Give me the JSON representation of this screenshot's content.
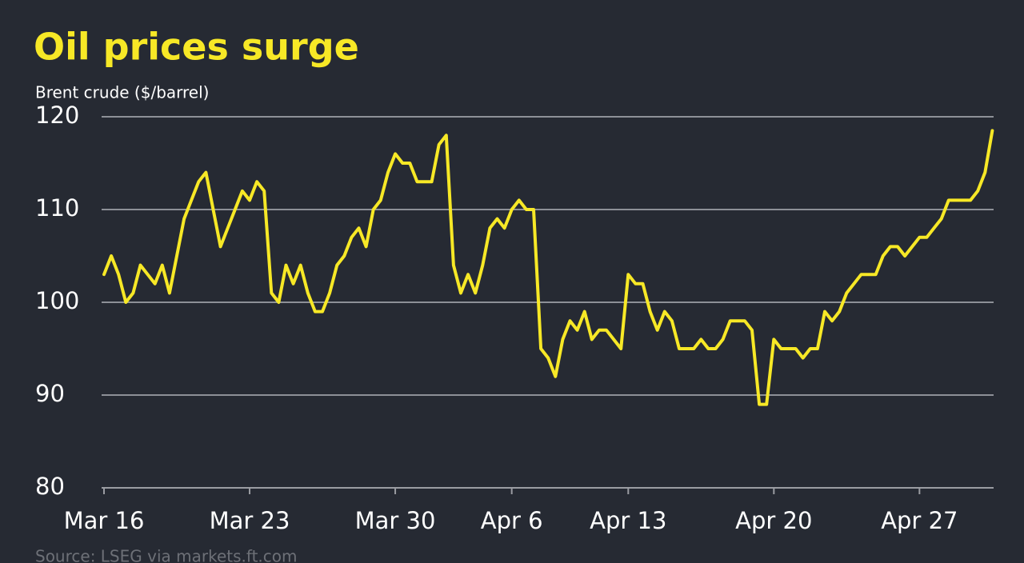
{
  "chart_data": {
    "type": "line",
    "title": "Oil prices surge",
    "subtitle": "Brent crude ($/barrel)",
    "source": "Source: LSEG via markets.ft.com",
    "x": [
      0,
      0.25,
      0.5,
      0.75,
      1,
      1.25,
      1.5,
      1.75,
      2,
      2.25,
      2.5,
      2.75,
      3,
      3.25,
      3.5,
      3.75,
      4,
      4.25,
      4.5,
      4.75,
      5,
      5.25,
      5.5,
      5.75,
      6,
      6.25,
      6.5,
      6.75,
      7,
      7.25,
      7.5,
      7.75,
      8,
      8.25,
      8.5,
      8.75,
      9,
      9.25,
      9.5,
      9.75,
      10,
      10.25,
      10.5,
      10.75,
      11,
      11.25,
      11.5,
      11.75,
      12,
      12.25,
      12.5,
      12.75,
      13,
      13.25,
      13.5,
      13.75,
      14,
      14.25,
      14.5,
      14.75,
      15,
      15.25,
      15.5,
      15.75,
      16,
      16.25,
      16.5,
      16.75,
      17,
      17.25,
      17.5,
      17.75,
      18,
      18.25,
      18.5,
      18.75,
      19,
      19.25,
      19.5,
      19.75,
      20,
      20.25,
      20.5,
      20.75,
      21,
      21.25,
      21.5,
      21.75,
      22,
      22.25,
      22.5,
      22.75,
      23,
      23.25,
      23.5,
      23.75,
      24,
      24.25,
      24.5,
      24.75,
      25,
      25.25,
      25.5,
      25.75,
      26,
      26.25,
      26.5,
      26.75,
      27,
      27.25,
      27.5,
      27.75,
      28,
      28.25,
      28.5,
      28.75,
      29,
      29.25,
      29.5,
      29.75,
      30,
      30.25,
      30.5
    ],
    "series": [
      {
        "name": "Brent crude",
        "color": "#f7e826",
        "values": [
          103,
          105,
          103,
          100,
          101,
          104,
          103,
          102,
          104,
          101,
          105,
          109,
          111,
          113,
          114,
          110,
          106,
          108,
          110,
          112,
          111,
          113,
          112,
          101,
          100,
          104,
          102,
          104,
          101,
          99,
          99,
          101,
          104,
          105,
          107,
          108,
          106,
          110,
          111,
          114,
          116,
          115,
          115,
          113,
          113,
          113,
          117,
          118,
          104,
          101,
          103,
          101,
          104,
          108,
          109,
          108,
          110,
          111,
          110,
          110,
          95,
          94,
          92,
          96,
          98,
          97,
          99,
          96,
          97,
          97,
          96,
          95,
          103,
          102,
          102,
          99,
          97,
          99,
          98,
          95,
          95,
          95,
          96,
          95,
          95,
          96,
          98,
          98,
          98,
          97,
          89,
          89,
          96,
          95,
          95,
          95,
          94,
          95,
          95,
          99,
          98,
          99,
          101,
          102,
          103,
          103,
          103,
          105,
          106,
          106,
          105,
          106,
          107,
          107,
          108,
          109,
          111,
          111,
          111,
          111,
          112,
          114,
          118.5
        ]
      }
    ],
    "xlim": [
      0,
      30.6
    ],
    "xticks": [
      {
        "value": 0,
        "label": "Mar 16"
      },
      {
        "value": 5,
        "label": "Mar 23"
      },
      {
        "value": 10,
        "label": "Mar 30"
      },
      {
        "value": 14,
        "label": "Apr 6"
      },
      {
        "value": 18,
        "label": "Apr 13"
      },
      {
        "value": 23,
        "label": "Apr 20"
      },
      {
        "value": 28,
        "label": "Apr 27"
      }
    ],
    "ylim": [
      80,
      120
    ],
    "yticks": [
      80,
      90,
      100,
      110,
      120
    ],
    "grid": true
  }
}
